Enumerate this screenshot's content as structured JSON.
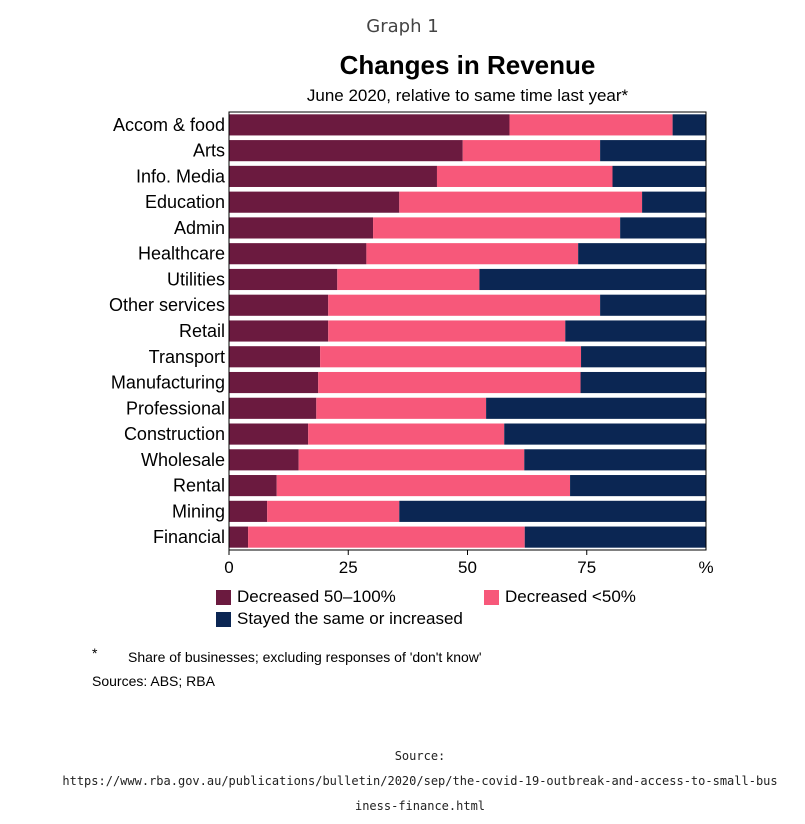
{
  "header": {
    "graph_label": "Graph 1"
  },
  "chart_data": {
    "type": "bar",
    "orientation": "horizontal",
    "stacked": true,
    "title": "Changes in Revenue",
    "subtitle": "June 2020, relative to same time last year*",
    "xlabel": "",
    "ylabel": "",
    "x_unit": "%",
    "xlim": [
      0,
      100
    ],
    "x_ticks": [
      "0",
      "25",
      "50",
      "75"
    ],
    "categories": [
      "Accom & food",
      "Arts",
      "Info. Media",
      "Education",
      "Admin",
      "Healthcare",
      "Utilities",
      "Other services",
      "Retail",
      "Transport",
      "Manufacturing",
      "Professional",
      "Construction",
      "Wholesale",
      "Rental",
      "Mining",
      "Financial"
    ],
    "series": [
      {
        "name": "Decreased 50–100%",
        "color": "#6b1a3f",
        "values": [
          58.8,
          49.0,
          43.6,
          35.7,
          30.2,
          28.8,
          22.7,
          20.8,
          20.8,
          19.1,
          18.7,
          18.3,
          16.6,
          14.6,
          10.0,
          8.0,
          4.0
        ]
      },
      {
        "name": "Decreased <50%",
        "color": "#f7587a",
        "values": [
          34.2,
          28.8,
          36.8,
          50.9,
          51.8,
          44.4,
          29.8,
          57.0,
          49.7,
          54.7,
          55.0,
          35.6,
          41.1,
          47.3,
          61.5,
          27.7,
          58.0
        ]
      },
      {
        "name": "Stayed the same or increased",
        "color": "#0b2653",
        "values": [
          7.0,
          22.2,
          19.6,
          13.4,
          18.0,
          26.8,
          47.5,
          22.2,
          29.5,
          26.2,
          26.3,
          46.1,
          42.3,
          38.1,
          28.5,
          64.3,
          38.0
        ]
      }
    ],
    "grid": false,
    "legend_position": "bottom"
  },
  "notes": {
    "asterisk": "*",
    "footnote": "Share of businesses; excluding responses of 'don't know'",
    "sources": "Sources: ABS; RBA"
  },
  "source_block": {
    "label": "Source:",
    "url": "https://www.rba.gov.au/publications/bulletin/2020/sep/the-covid-19-outbreak-and-access-to-small-business-finance.html"
  }
}
